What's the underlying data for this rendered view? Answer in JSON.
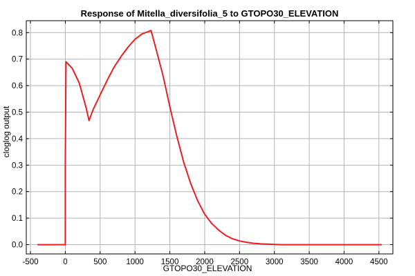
{
  "chart_data": {
    "type": "line",
    "title": "Response of Mitella_diversifolia_5 to GTOPO30_ELEVATION",
    "xlabel": "GTOPO30_ELEVATION",
    "ylabel": "cloglog output",
    "xlim": [
      -560,
      4700
    ],
    "ylim": [
      -0.035,
      0.845
    ],
    "x_ticks": [
      -500,
      0,
      500,
      1000,
      1500,
      2000,
      2500,
      3000,
      3500,
      4000,
      4500
    ],
    "x_tick_labels": [
      "-500",
      "0",
      "500",
      "1000",
      "1500",
      "2000",
      "2500",
      "3000",
      "3500",
      "4000",
      "4500"
    ],
    "y_ticks": [
      0.0,
      0.1,
      0.2,
      0.3,
      0.4,
      0.5,
      0.6,
      0.7,
      0.8
    ],
    "y_tick_labels": [
      "0.0",
      "0.1",
      "0.2",
      "0.3",
      "0.4",
      "0.5",
      "0.6",
      "0.7",
      "0.8"
    ],
    "grid": true,
    "series": [
      {
        "color": "#ee1c1c",
        "x": [
          -400,
          -200,
          0,
          0,
          10,
          100,
          200,
          300,
          340,
          400,
          500,
          600,
          700,
          800,
          900,
          1000,
          1100,
          1200,
          1230,
          1300,
          1400,
          1500,
          1600,
          1700,
          1800,
          1900,
          2000,
          2100,
          2200,
          2300,
          2400,
          2500,
          2600,
          2700,
          2800,
          2900,
          3000,
          3100,
          3500,
          4000,
          4540
        ],
        "y": [
          0.0,
          0.0,
          0.0,
          0.3,
          0.69,
          0.665,
          0.61,
          0.515,
          0.468,
          0.51,
          0.565,
          0.62,
          0.67,
          0.71,
          0.745,
          0.775,
          0.795,
          0.805,
          0.808,
          0.74,
          0.64,
          0.52,
          0.41,
          0.31,
          0.23,
          0.165,
          0.115,
          0.08,
          0.055,
          0.035,
          0.022,
          0.014,
          0.009,
          0.005,
          0.003,
          0.002,
          0.001,
          0.0,
          0.0,
          0.0,
          0.0
        ]
      }
    ]
  }
}
